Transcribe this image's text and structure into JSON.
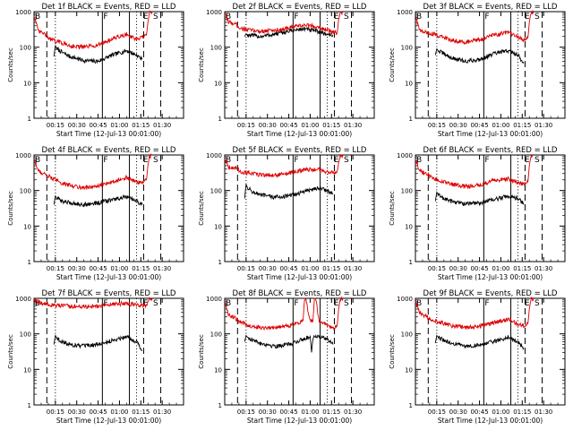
{
  "chart_data": [
    {
      "type": "line",
      "title": "Det 1f BLACK = Events, RED = LLD",
      "xlabel": "Start Time (12-Jul-13 00:01:00)",
      "ylabel": "Counts/sec",
      "yscale": "log",
      "ylim": [
        1,
        1000
      ],
      "xlim": [
        0,
        105
      ],
      "yticks": [
        "1",
        "10",
        "100",
        "1000"
      ],
      "xticks": [
        "00:15",
        "00:30",
        "00:45",
        "01:00",
        "01:15",
        "01:30"
      ],
      "markers": [
        {
          "label": "B",
          "x": 0
        },
        {
          "label": "F",
          "x": 48
        },
        {
          "label": "E",
          "x": 76
        },
        {
          "label": "S",
          "x": 83
        }
      ],
      "vlines": {
        "dashed": [
          9,
          77,
          89
        ],
        "dotted": [
          15,
          72
        ],
        "solid": [
          48,
          67
        ]
      },
      "series": [
        {
          "name": "RED",
          "color": "#dd0000",
          "x": [
            0,
            3,
            7,
            12,
            18,
            25,
            35,
            45,
            55,
            65,
            72,
            76,
            79,
            80,
            81,
            83
          ],
          "y": [
            800,
            280,
            240,
            160,
            140,
            110,
            100,
            115,
            170,
            230,
            160,
            190,
            220,
            500,
            900,
            1000
          ]
        },
        {
          "name": "BLACK",
          "color": "#000000",
          "x": [
            14,
            15,
            16,
            20,
            25,
            35,
            45,
            55,
            65,
            72,
            76
          ],
          "y": [
            55,
            110,
            90,
            70,
            55,
            42,
            40,
            60,
            80,
            60,
            45
          ]
        }
      ]
    },
    {
      "type": "line",
      "title": "Det 2f BLACK = Events, RED = LLD",
      "xlabel": "Start Time (12-Jul-13 00:01:00)",
      "ylabel": "Counts/sec",
      "yscale": "log",
      "ylim": [
        1,
        1000
      ],
      "xlim": [
        0,
        105
      ],
      "yticks": [
        "1",
        "10",
        "100",
        "1000"
      ],
      "xticks": [
        "00:15",
        "00:30",
        "00:45",
        "01:00",
        "01:15",
        "01:30"
      ],
      "markers": [
        {
          "label": "B",
          "x": 0
        },
        {
          "label": "F",
          "x": 48
        },
        {
          "label": "E",
          "x": 76
        },
        {
          "label": "S",
          "x": 83
        }
      ],
      "vlines": {
        "dashed": [
          9,
          77,
          89
        ],
        "dotted": [
          15,
          72
        ],
        "solid": [
          48,
          67
        ]
      },
      "series": [
        {
          "name": "RED",
          "color": "#dd0000",
          "x": [
            0,
            3,
            7,
            12,
            18,
            25,
            35,
            45,
            55,
            65,
            72,
            76,
            79,
            80,
            81,
            83
          ],
          "y": [
            800,
            500,
            460,
            330,
            300,
            280,
            300,
            340,
            420,
            380,
            300,
            260,
            250,
            600,
            900,
            1000
          ]
        },
        {
          "name": "BLACK",
          "color": "#000000",
          "x": [
            14,
            15,
            16,
            20,
            25,
            35,
            45,
            55,
            65,
            72,
            76
          ],
          "y": [
            200,
            240,
            220,
            210,
            200,
            230,
            280,
            330,
            280,
            230,
            220
          ]
        }
      ]
    },
    {
      "type": "line",
      "title": "Det 3f BLACK = Events, RED = LLD",
      "xlabel": "Start Time (12-Jul-13 00:01:00)",
      "ylabel": "Counts/sec",
      "yscale": "log",
      "ylim": [
        1,
        1000
      ],
      "xlim": [
        0,
        105
      ],
      "yticks": [
        "1",
        "10",
        "100",
        "1000"
      ],
      "xticks": [
        "00:15",
        "00:30",
        "00:45",
        "01:00",
        "01:15",
        "01:30"
      ],
      "markers": [
        {
          "label": "B",
          "x": 0
        },
        {
          "label": "F",
          "x": 48
        },
        {
          "label": "E",
          "x": 76
        },
        {
          "label": "S",
          "x": 83
        }
      ],
      "vlines": {
        "dashed": [
          9,
          77,
          89
        ],
        "dotted": [
          15,
          72
        ],
        "solid": [
          48,
          67
        ]
      },
      "series": [
        {
          "name": "RED",
          "color": "#dd0000",
          "x": [
            0,
            3,
            7,
            12,
            18,
            25,
            35,
            45,
            55,
            65,
            72,
            76,
            79,
            80,
            81,
            83
          ],
          "y": [
            800,
            290,
            260,
            240,
            200,
            160,
            140,
            160,
            220,
            260,
            190,
            160,
            180,
            500,
            900,
            1000
          ]
        },
        {
          "name": "BLACK",
          "color": "#000000",
          "x": [
            14,
            15,
            16,
            20,
            25,
            35,
            45,
            55,
            65,
            72,
            76
          ],
          "y": [
            60,
            90,
            80,
            65,
            50,
            40,
            45,
            65,
            80,
            60,
            35
          ]
        }
      ]
    },
    {
      "type": "line",
      "title": "Det 4f BLACK = Events, RED = LLD",
      "xlabel": "Start Time (12-Jul-13 00:01:00)",
      "ylabel": "Counts/sec",
      "yscale": "log",
      "ylim": [
        1,
        1000
      ],
      "xlim": [
        0,
        105
      ],
      "yticks": [
        "1",
        "10",
        "100",
        "1000"
      ],
      "xticks": [
        "00:15",
        "00:30",
        "00:45",
        "01:00",
        "01:15",
        "01:30"
      ],
      "markers": [
        {
          "label": "B",
          "x": 0
        },
        {
          "label": "F",
          "x": 48
        },
        {
          "label": "E",
          "x": 76
        },
        {
          "label": "S",
          "x": 83
        }
      ],
      "vlines": {
        "dashed": [
          9,
          77,
          89
        ],
        "dotted": [
          15,
          72
        ],
        "solid": [
          48,
          67
        ]
      },
      "series": [
        {
          "name": "RED",
          "color": "#dd0000",
          "x": [
            0,
            3,
            7,
            12,
            18,
            25,
            35,
            45,
            55,
            65,
            72,
            76,
            79,
            80,
            81,
            83
          ],
          "y": [
            800,
            350,
            300,
            230,
            170,
            140,
            120,
            130,
            180,
            230,
            170,
            170,
            200,
            500,
            900,
            1000
          ]
        },
        {
          "name": "BLACK",
          "color": "#000000",
          "x": [
            14,
            15,
            16,
            20,
            25,
            35,
            45,
            55,
            65,
            72,
            76
          ],
          "y": [
            40,
            70,
            60,
            50,
            45,
            40,
            45,
            55,
            65,
            50,
            40
          ]
        }
      ]
    },
    {
      "type": "line",
      "title": "Det 5f BLACK = Events, RED = LLD",
      "xlabel": "Start Time (12-Jul-13 00:01:00)",
      "ylabel": "Counts/sec",
      "yscale": "log",
      "ylim": [
        1,
        1000
      ],
      "xlim": [
        0,
        105
      ],
      "yticks": [
        "1",
        "10",
        "100",
        "1000"
      ],
      "xticks": [
        "00:15",
        "00:30",
        "00:45",
        "01:00",
        "01:15",
        "01:30"
      ],
      "markers": [
        {
          "label": "B",
          "x": 0
        },
        {
          "label": "F",
          "x": 48
        },
        {
          "label": "E",
          "x": 76
        },
        {
          "label": "S",
          "x": 83
        }
      ],
      "vlines": {
        "dashed": [
          9,
          77,
          89
        ],
        "dotted": [
          15,
          72
        ],
        "solid": [
          48,
          67
        ]
      },
      "series": [
        {
          "name": "RED",
          "color": "#dd0000",
          "x": [
            0,
            3,
            7,
            12,
            18,
            25,
            35,
            45,
            55,
            65,
            72,
            76,
            79,
            80,
            81,
            83
          ],
          "y": [
            800,
            460,
            440,
            330,
            300,
            280,
            270,
            300,
            380,
            400,
            330,
            320,
            340,
            600,
            900,
            1000
          ]
        },
        {
          "name": "BLACK",
          "color": "#000000",
          "x": [
            14,
            15,
            16,
            20,
            25,
            35,
            45,
            55,
            65,
            72,
            76
          ],
          "y": [
            60,
            150,
            120,
            90,
            75,
            65,
            70,
            90,
            120,
            100,
            80
          ]
        }
      ]
    },
    {
      "type": "line",
      "title": "Det 6f BLACK = Events, RED = LLD",
      "xlabel": "Start Time (12-Jul-13 00:01:00)",
      "ylabel": "Counts/sec",
      "yscale": "log",
      "ylim": [
        1,
        1000
      ],
      "xlim": [
        0,
        105
      ],
      "yticks": [
        "1",
        "10",
        "100",
        "1000"
      ],
      "xticks": [
        "00:15",
        "00:30",
        "00:45",
        "01:00",
        "01:15",
        "01:30"
      ],
      "markers": [
        {
          "label": "B",
          "x": 0
        },
        {
          "label": "F",
          "x": 48
        },
        {
          "label": "E",
          "x": 76
        },
        {
          "label": "S",
          "x": 83
        }
      ],
      "vlines": {
        "dashed": [
          9,
          77,
          89
        ],
        "dotted": [
          15,
          72
        ],
        "solid": [
          48,
          67
        ]
      },
      "series": [
        {
          "name": "RED",
          "color": "#dd0000",
          "x": [
            0,
            3,
            7,
            12,
            18,
            25,
            35,
            45,
            55,
            65,
            72,
            76,
            79,
            80,
            81,
            83
          ],
          "y": [
            800,
            350,
            300,
            230,
            180,
            150,
            130,
            140,
            190,
            210,
            170,
            150,
            170,
            500,
            900,
            1000
          ]
        },
        {
          "name": "BLACK",
          "color": "#000000",
          "x": [
            14,
            15,
            16,
            20,
            25,
            35,
            45,
            55,
            65,
            72,
            76
          ],
          "y": [
            50,
            90,
            75,
            60,
            50,
            42,
            45,
            55,
            70,
            60,
            40
          ]
        }
      ]
    },
    {
      "type": "line",
      "title": "Det 7f BLACK = Events, RED = LLD",
      "xlabel": "Start Time (12-Jul-13 00:01:00)",
      "ylabel": "Counts/sec",
      "yscale": "log",
      "ylim": [
        1,
        1000
      ],
      "xlim": [
        0,
        105
      ],
      "yticks": [
        "1",
        "10",
        "100",
        "1000"
      ],
      "xticks": [
        "00:15",
        "00:30",
        "00:45",
        "01:00",
        "01:15",
        "01:30"
      ],
      "markers": [
        {
          "label": "B",
          "x": 0
        },
        {
          "label": "F",
          "x": 48
        },
        {
          "label": "E",
          "x": 76
        },
        {
          "label": "S",
          "x": 83
        }
      ],
      "vlines": {
        "dashed": [
          9,
          77,
          89
        ],
        "dotted": [
          15,
          72
        ],
        "solid": [
          48,
          67
        ]
      },
      "series": [
        {
          "name": "RED",
          "color": "#dd0000",
          "x": [
            0,
            3,
            7,
            12,
            18,
            25,
            35,
            45,
            55,
            65,
            72,
            76,
            79,
            80,
            81,
            83
          ],
          "y": [
            900,
            750,
            700,
            650,
            620,
            600,
            580,
            600,
            680,
            720,
            650,
            620,
            640,
            800,
            950,
            1000
          ]
        },
        {
          "name": "BLACK",
          "color": "#000000",
          "x": [
            14,
            15,
            16,
            20,
            25,
            35,
            45,
            55,
            65,
            72,
            76
          ],
          "y": [
            50,
            90,
            75,
            60,
            50,
            45,
            50,
            65,
            85,
            60,
            35
          ]
        }
      ]
    },
    {
      "type": "line",
      "title": "Det 8f BLACK = Events, RED = LLD",
      "xlabel": "Start Time (12-Jul-13 00:01:00)",
      "ylabel": "Counts/sec",
      "yscale": "log",
      "ylim": [
        1,
        1000
      ],
      "xlim": [
        0,
        105
      ],
      "yticks": [
        "1",
        "10",
        "100",
        "1000"
      ],
      "xticks": [
        "00:15",
        "00:30",
        "00:45",
        "01:00",
        "01:15",
        "01:30"
      ],
      "markers": [
        {
          "label": "B",
          "x": 0
        },
        {
          "label": "F",
          "x": 48
        },
        {
          "label": "E",
          "x": 76
        },
        {
          "label": "S",
          "x": 83
        }
      ],
      "vlines": {
        "dashed": [
          9,
          77,
          89
        ],
        "dotted": [
          15,
          72
        ],
        "solid": [
          48,
          67
        ]
      },
      "series": [
        {
          "name": "RED",
          "color": "#dd0000",
          "x": [
            0,
            3,
            7,
            12,
            18,
            25,
            35,
            45,
            55,
            56,
            57,
            60,
            62,
            63,
            64,
            66,
            72,
            76,
            79,
            80,
            81,
            83
          ],
          "y": [
            800,
            330,
            280,
            200,
            170,
            150,
            150,
            170,
            230,
            900,
            900,
            230,
            240,
            1000,
            1000,
            250,
            170,
            150,
            170,
            500,
            900,
            1000
          ]
        },
        {
          "name": "BLACK",
          "color": "#000000",
          "x": [
            14,
            15,
            16,
            20,
            25,
            35,
            45,
            55,
            60,
            61,
            62,
            66,
            72,
            76
          ],
          "y": [
            60,
            90,
            80,
            65,
            55,
            45,
            50,
            70,
            85,
            30,
            80,
            90,
            70,
            50
          ]
        }
      ]
    },
    {
      "type": "line",
      "title": "Det 9f BLACK = Events, RED = LLD",
      "xlabel": "Start Time (12-Jul-13 00:01:00)",
      "ylabel": "Counts/sec",
      "yscale": "log",
      "ylim": [
        1,
        1000
      ],
      "xlim": [
        0,
        105
      ],
      "yticks": [
        "1",
        "10",
        "100",
        "1000"
      ],
      "xticks": [
        "00:15",
        "00:30",
        "00:45",
        "01:00",
        "01:15",
        "01:30"
      ],
      "markers": [
        {
          "label": "B",
          "x": 0
        },
        {
          "label": "F",
          "x": 48
        },
        {
          "label": "E",
          "x": 76
        },
        {
          "label": "S",
          "x": 83
        }
      ],
      "vlines": {
        "dashed": [
          9,
          77,
          89
        ],
        "dotted": [
          15,
          72
        ],
        "solid": [
          48,
          67
        ]
      },
      "series": [
        {
          "name": "RED",
          "color": "#dd0000",
          "x": [
            0,
            3,
            7,
            12,
            18,
            25,
            35,
            45,
            55,
            65,
            72,
            76,
            79,
            80,
            81,
            83
          ],
          "y": [
            800,
            380,
            320,
            250,
            210,
            170,
            150,
            160,
            210,
            250,
            190,
            170,
            190,
            500,
            900,
            1000
          ]
        },
        {
          "name": "BLACK",
          "color": "#000000",
          "x": [
            14,
            15,
            16,
            20,
            25,
            35,
            45,
            55,
            65,
            72,
            76
          ],
          "y": [
            55,
            90,
            80,
            65,
            55,
            45,
            48,
            60,
            80,
            60,
            40
          ]
        }
      ]
    }
  ]
}
